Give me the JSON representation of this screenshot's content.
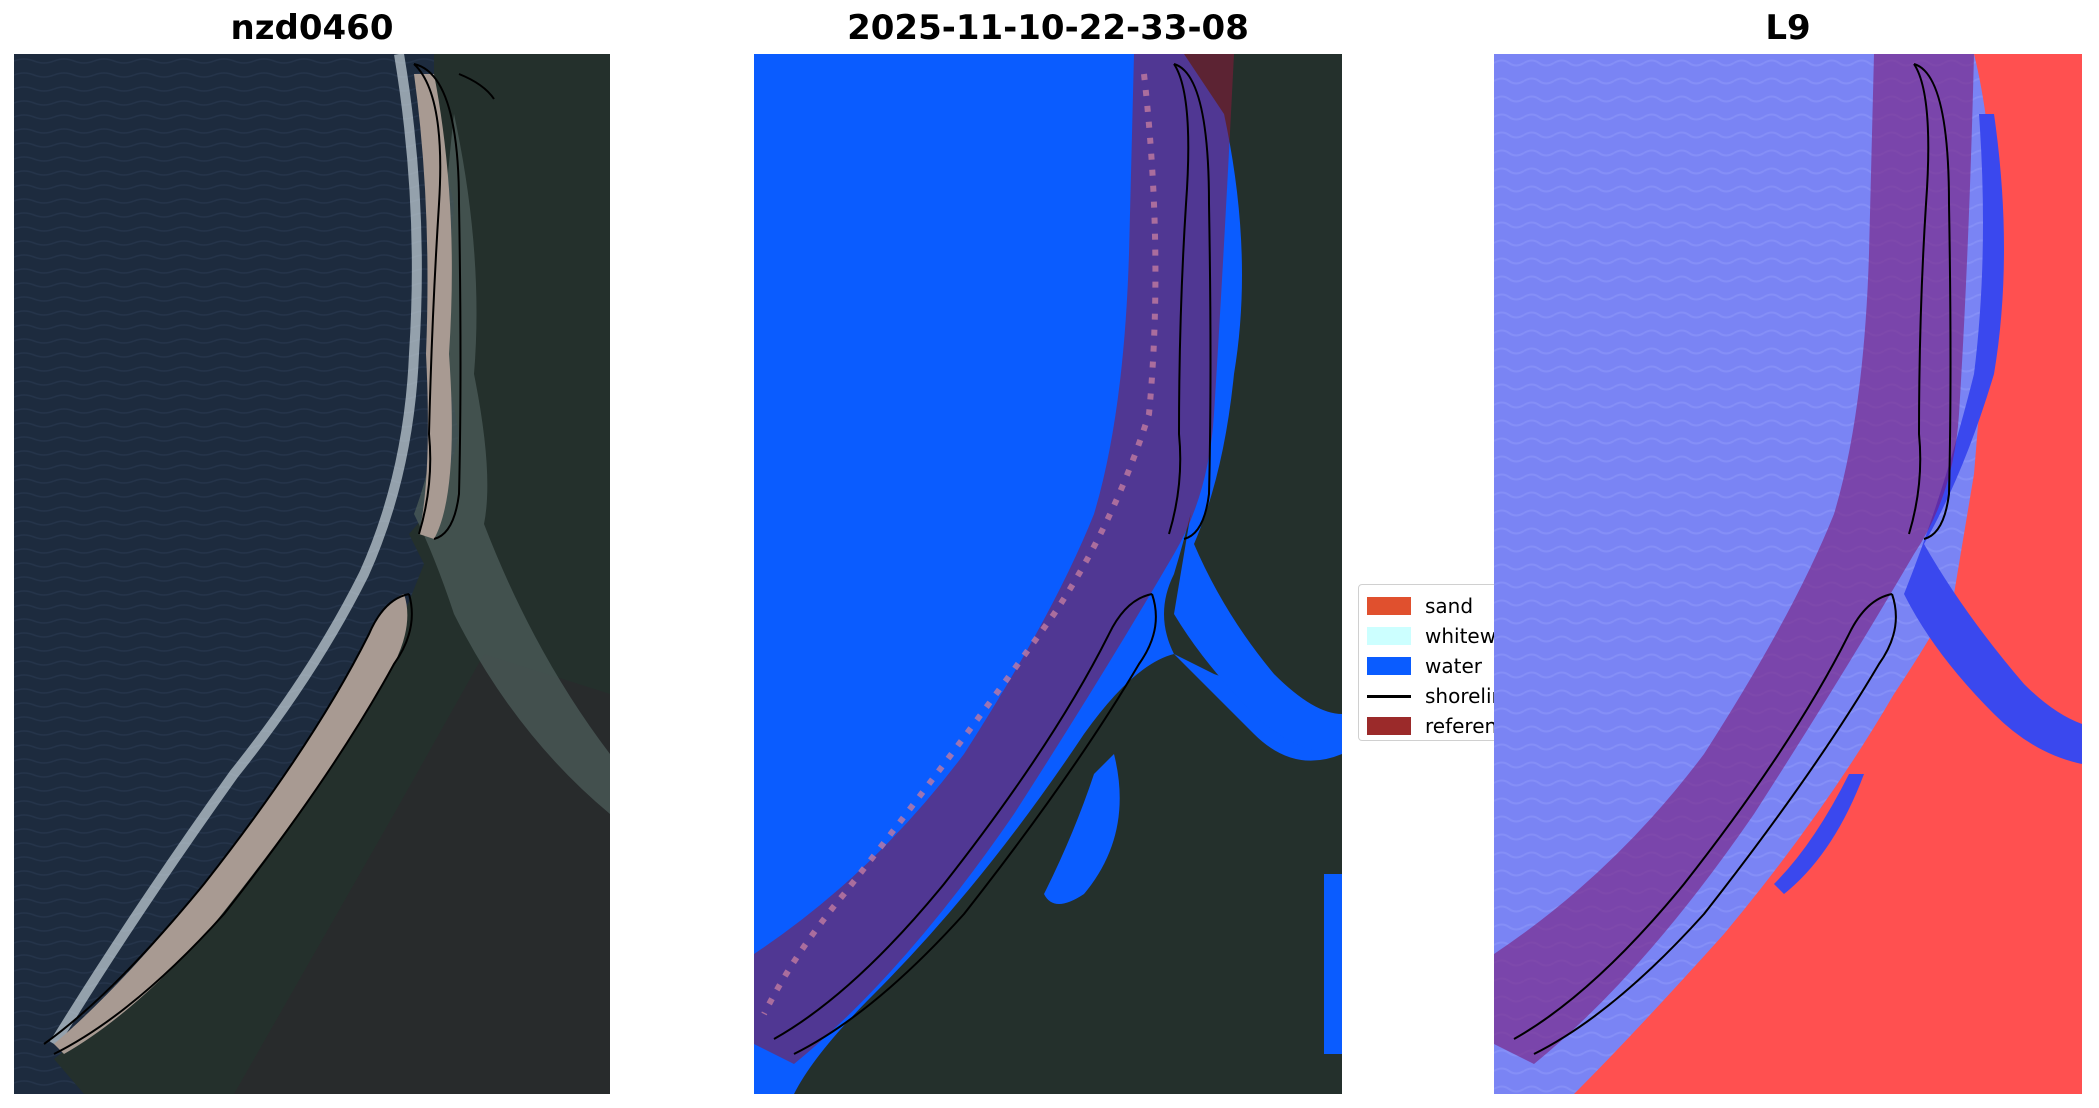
{
  "titles": {
    "left": "nzd0460",
    "middle": "2025-11-10-22-33-08",
    "right": "L9"
  },
  "legend": {
    "items": [
      {
        "label": "sand",
        "color": "#e0502e",
        "kind": "swatch"
      },
      {
        "label": "whitewater",
        "color": "#ccffff",
        "kind": "swatch"
      },
      {
        "label": "water",
        "color": "#0a5cff",
        "kind": "swatch"
      },
      {
        "label": "shoreline",
        "color": "#000000",
        "kind": "line"
      },
      {
        "label": "reference shoreline buffer",
        "color": "#9b2a2a",
        "kind": "swatch"
      }
    ]
  },
  "colors": {
    "ocean_rgb": "#1d2b3e",
    "land_rgb": "#24302c",
    "beach_rgb": "#a89a92",
    "water_class": "#0a5cff",
    "buffer_overlay": "#8a1a3a",
    "index_water": "#5a68f0",
    "index_land": "#ff4a4a"
  }
}
